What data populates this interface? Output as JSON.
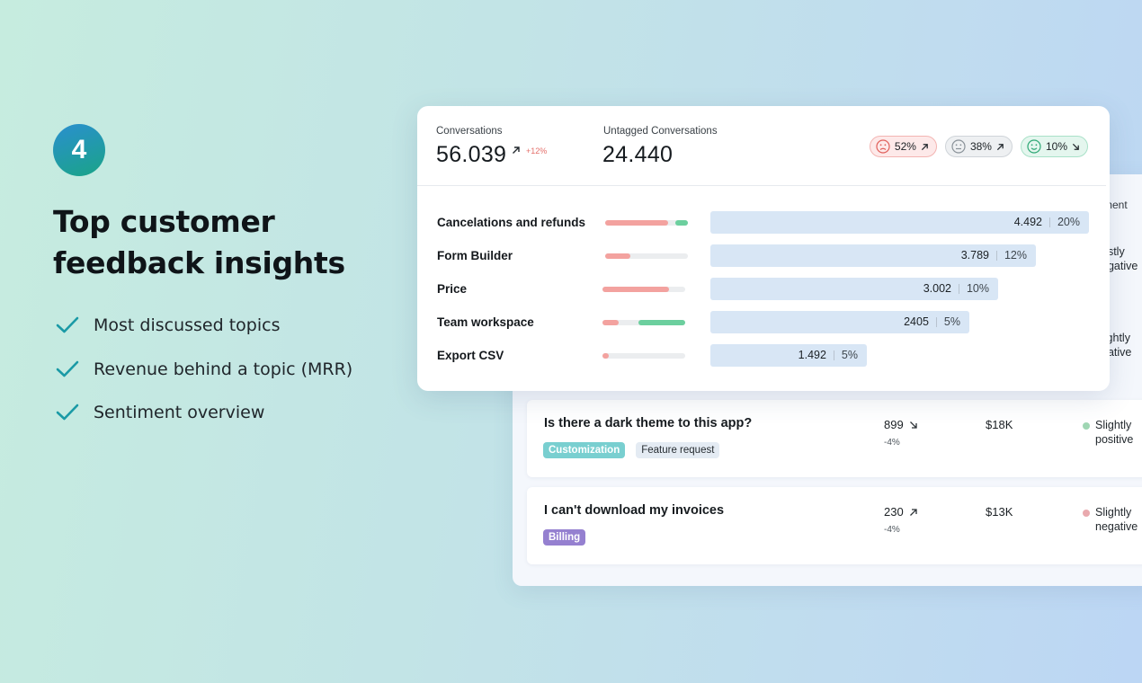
{
  "left": {
    "step_number": "4",
    "headline": "Top customer feedback insights",
    "features": [
      {
        "label": "Most discussed topics",
        "icon": "check-icon"
      },
      {
        "label": "Revenue behind a topic (MRR)",
        "icon": "check-icon"
      },
      {
        "label": "Sentiment overview",
        "icon": "check-icon"
      }
    ]
  },
  "summary": {
    "conversations_label": "Conversations",
    "conversations_value": "56.039",
    "conversations_growth": "+12%",
    "untagged_label": "Untagged Conversations",
    "untagged_value": "24.440",
    "sentiments": [
      {
        "type": "negative",
        "icon": "sad-face-icon",
        "value": "52%",
        "trend": "up"
      },
      {
        "type": "neutral",
        "icon": "neutral-face-icon",
        "value": "38%",
        "trend": "up"
      },
      {
        "type": "positive",
        "icon": "smile-face-icon",
        "value": "10%",
        "trend": "down"
      }
    ]
  },
  "topics": [
    {
      "name": "Cancelations and refunds",
      "negative": 0.76,
      "positive": 0.15,
      "count": "4.492",
      "share": "20%",
      "share_value": 20
    },
    {
      "name": "Form Builder",
      "negative": 0.3,
      "positive": 0,
      "count": "3.789",
      "share": "12%",
      "share_value": 12
    },
    {
      "name": "Price",
      "negative": 0.8,
      "positive": 0,
      "count": "3.002",
      "share": "10%",
      "share_value": 10
    },
    {
      "name": "Team workspace",
      "negative": 0.2,
      "positive": 0.56,
      "count": "2405",
      "share": "5%",
      "share_value": 5
    },
    {
      "name": "Export CSV",
      "negative": 0.08,
      "positive": 0,
      "count": "1.492",
      "share": "5%",
      "share_value": 5
    }
  ],
  "back_table": {
    "sentiment_header_partial": "ment",
    "partial_sentiments": [
      {
        "line1": "ostly",
        "line2": "egative"
      },
      {
        "line1": "lightly",
        "line2": "gative"
      }
    ],
    "rows": [
      {
        "question": "Is there a dark theme to this app?",
        "tags": [
          {
            "label": "Customization",
            "style": "customization"
          },
          {
            "label": "Feature request",
            "style": "feature"
          }
        ],
        "count": "899",
        "trend": "down",
        "delta": "-4%",
        "mrr": "$18K",
        "sentiment_line1": "Slightly",
        "sentiment_line2": "positive",
        "sentiment_color": "#9fd6b3"
      },
      {
        "question": "I can't download my invoices",
        "tags": [
          {
            "label": "Billing",
            "style": "billing"
          }
        ],
        "count": "230",
        "trend": "up",
        "delta": "-4%",
        "mrr": "$13K",
        "sentiment_line1": "Slightly",
        "sentiment_line2": "negative",
        "sentiment_color": "#e9a9ae"
      }
    ]
  },
  "colors": {
    "negative": "#f3a29f",
    "positive": "#6ccf9e",
    "volume_bar": "#d8e6f5",
    "brand_gradient_start": "#2a8fcf",
    "brand_gradient_end": "#1aa487"
  }
}
